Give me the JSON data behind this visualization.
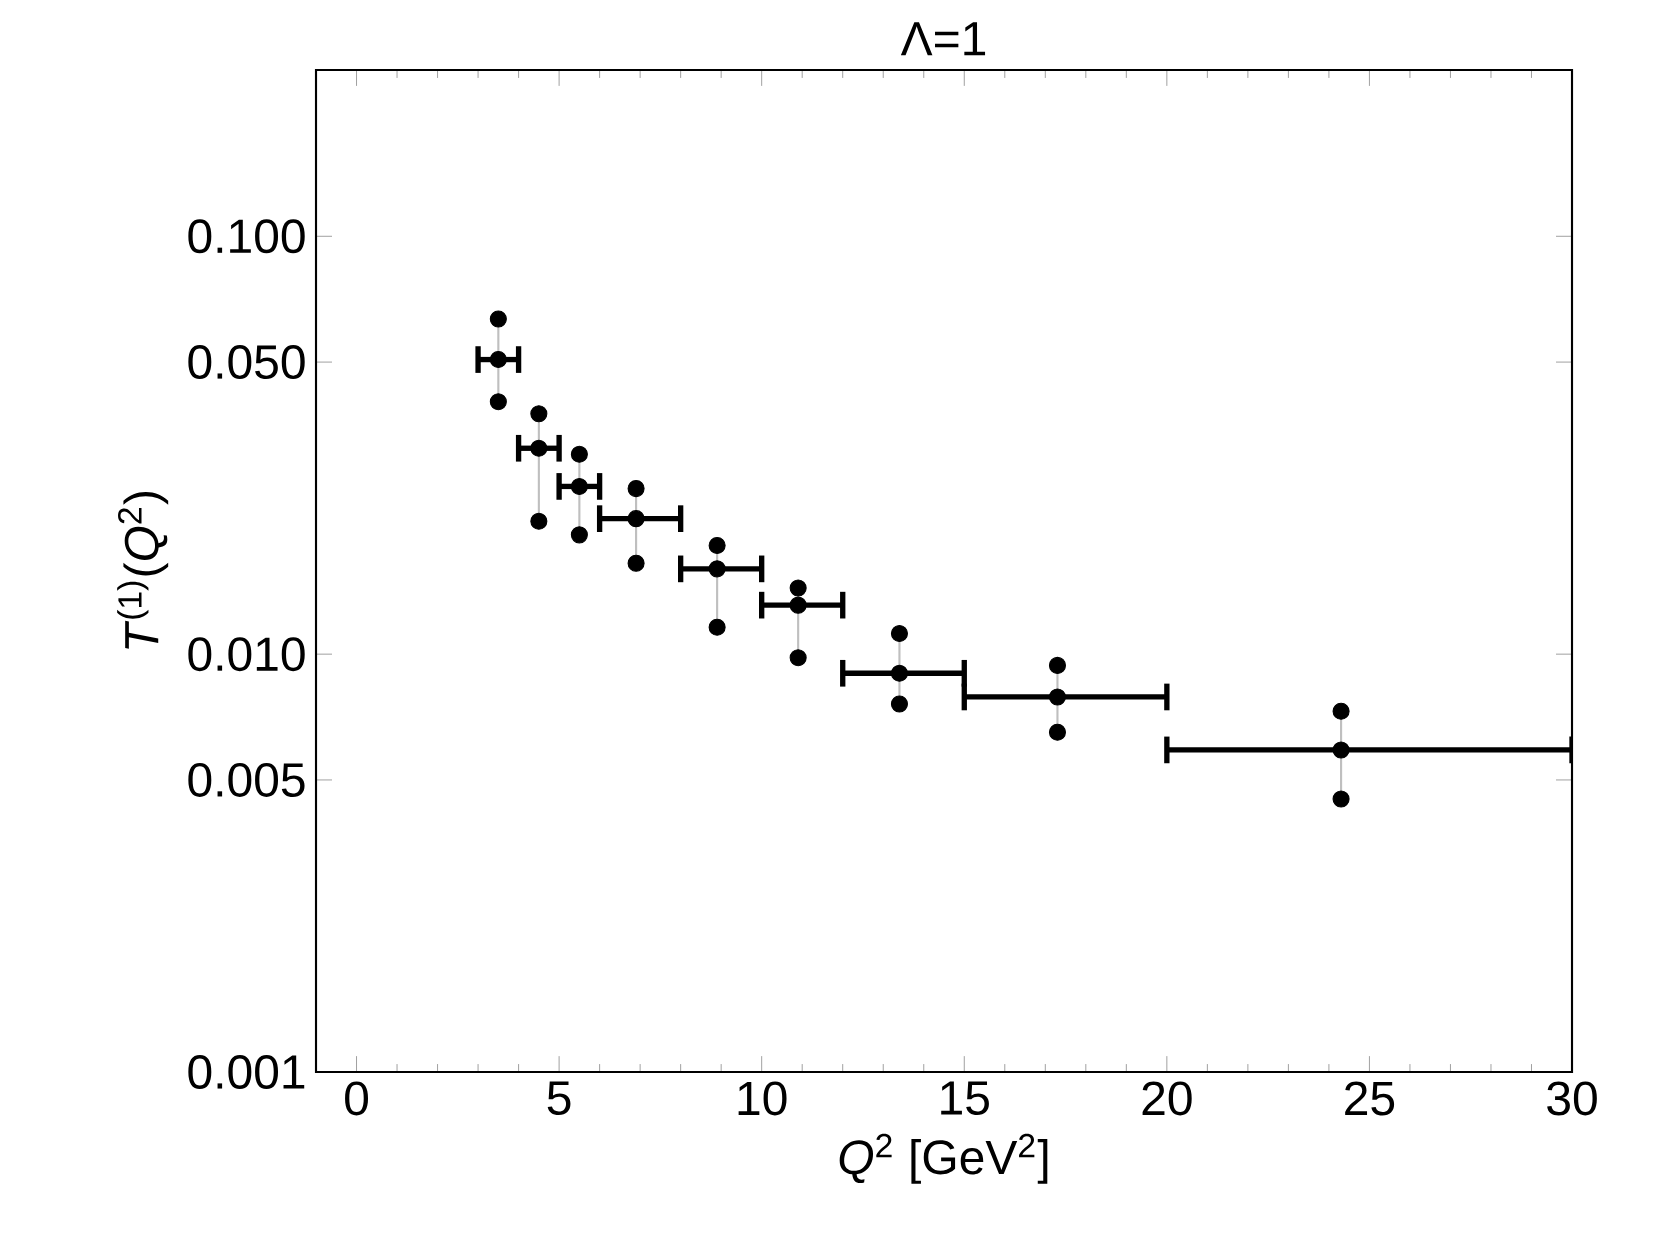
{
  "chart_data": {
    "type": "scatter",
    "title": "Λ=1",
    "xlabel": "*Q*$^{2}$ [GeV$^{2}$]",
    "ylabel": "*T*$^{(1)}$(*Q*$^{2}$)",
    "log": "y",
    "grid": false,
    "legend": false,
    "xlim": [
      -1,
      30
    ],
    "xticks": [
      0,
      5,
      10,
      15,
      20,
      25,
      30
    ],
    "ylim": [
      0.001,
      0.25
    ],
    "yticks": [
      {
        "value": 0.001,
        "label": "0.001"
      },
      {
        "value": 0.005,
        "label": "0.005"
      },
      {
        "value": 0.01,
        "label": "0.010"
      },
      {
        "value": 0.05,
        "label": "0.050"
      },
      {
        "value": 0.1,
        "label": "0.100"
      }
    ],
    "series": [
      {
        "color": "#000000",
        "x": [
          3.5,
          4.5,
          5.5,
          6.9,
          8.9,
          10.9,
          13.4,
          17.3,
          24.3
        ],
        "values": [
          0.0507,
          0.0311,
          0.0252,
          0.0211,
          0.016,
          0.0131,
          0.009,
          0.0079,
          0.0059
        ],
        "xerrors": [
          [
            3,
            4
          ],
          [
            4,
            5
          ],
          [
            5,
            6
          ],
          [
            6,
            8
          ],
          [
            8,
            10
          ],
          [
            10,
            12
          ],
          [
            12,
            15
          ],
          [
            15,
            20
          ],
          [
            20,
            30
          ]
        ],
        "errors": [
          [
            0.0402,
            0.0634
          ],
          [
            0.0208,
            0.0376
          ],
          [
            0.0193,
            0.0301
          ],
          [
            0.0165,
            0.0249
          ],
          [
            0.0116,
            0.0182
          ],
          [
            0.0098,
            0.0144
          ],
          [
            0.0076,
            0.0112
          ],
          [
            0.0065,
            0.0094
          ],
          [
            0.0045,
            0.0073
          ]
        ]
      },
      {
        "color": "#000000",
        "x": [
          3.5,
          4.5,
          5.5,
          6.9,
          8.9,
          10.9,
          13.4,
          17.3,
          24.3
        ],
        "values": [
          0.0634,
          0.0376,
          0.0301,
          0.0249,
          0.0182,
          0.0144,
          0.0112,
          0.0094,
          0.0073
        ]
      },
      {
        "color": "#000000",
        "x": [
          3.5,
          4.5,
          5.5,
          6.9,
          8.9,
          10.9,
          13.4,
          17.3,
          24.3
        ],
        "values": [
          0.0402,
          0.0208,
          0.0193,
          0.0165,
          0.0116,
          0.0098,
          0.0076,
          0.0065,
          0.0045
        ]
      }
    ]
  }
}
